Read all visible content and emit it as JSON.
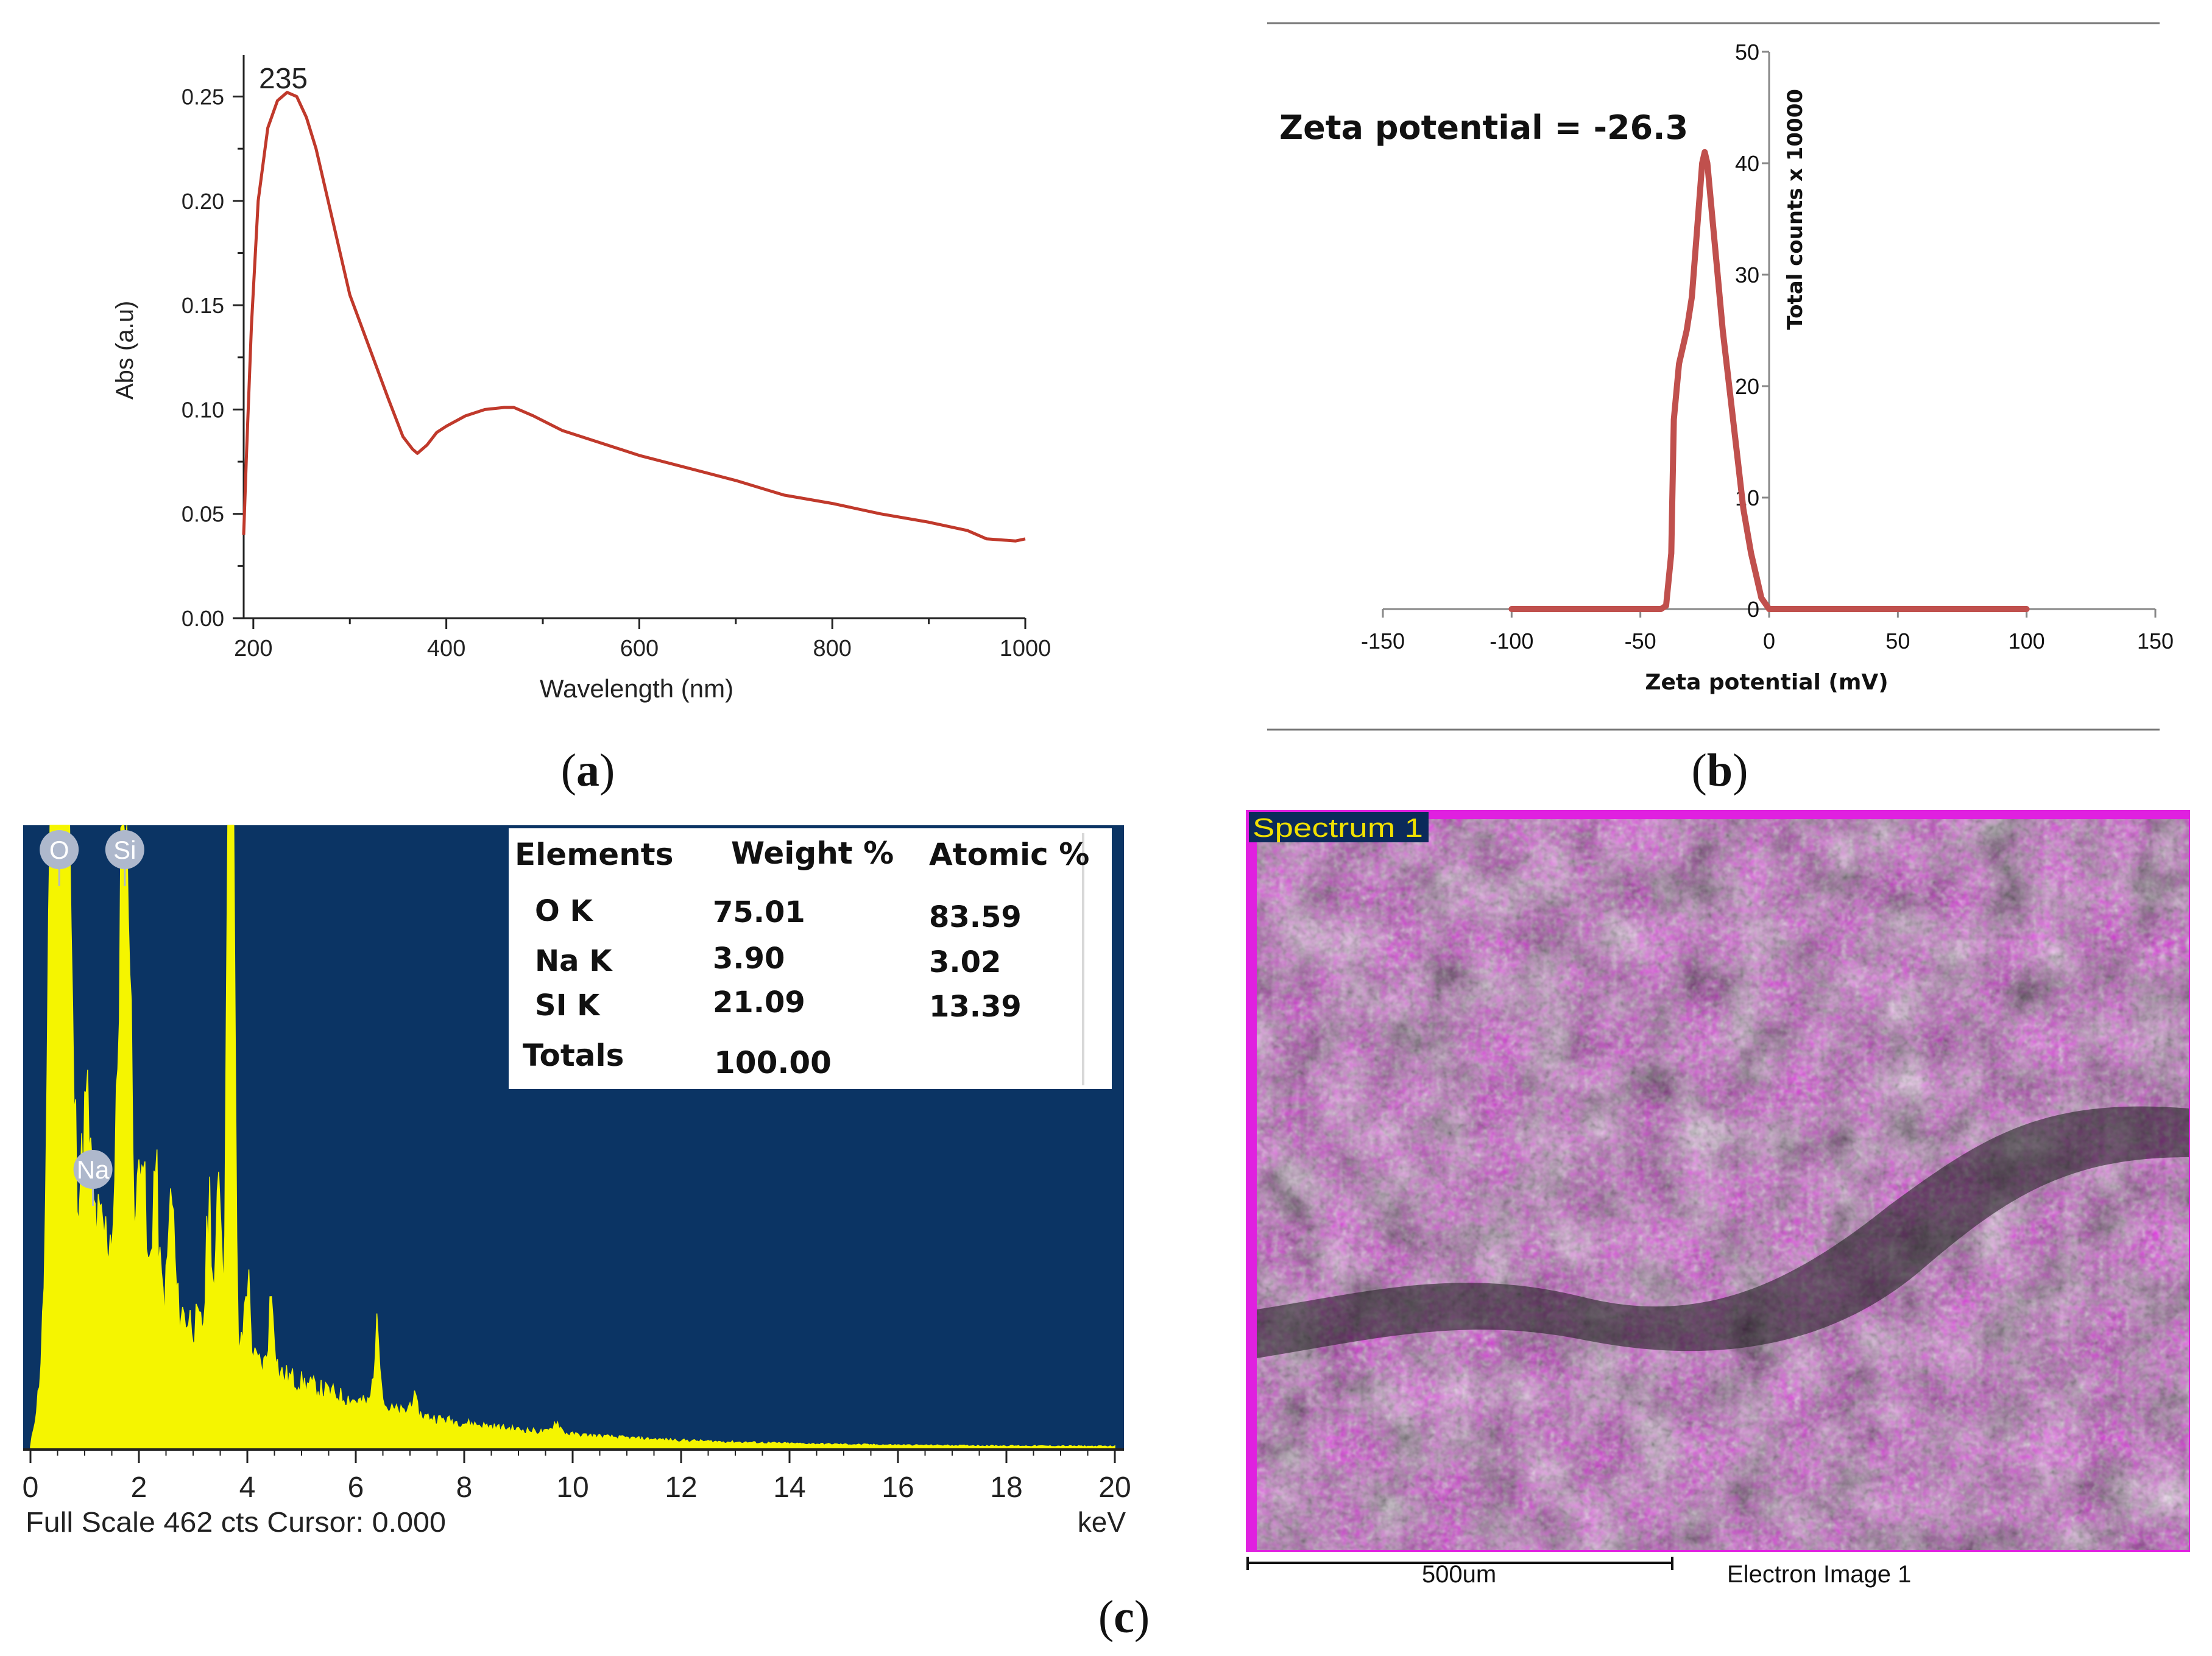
{
  "panel_labels": {
    "a": [
      "(",
      "a",
      ")"
    ],
    "b": [
      "(",
      "b",
      ")"
    ],
    "c": [
      "(",
      "c",
      ")"
    ]
  },
  "chart_data": [
    {
      "id": "a",
      "type": "line",
      "title": "",
      "xlabel": "Wavelength (nm)",
      "ylabel": "Abs (a.u)",
      "xlim": [
        190,
        1000
      ],
      "ylim": [
        0,
        0.27
      ],
      "x_ticks": [
        200,
        400,
        600,
        800,
        1000
      ],
      "x_tick_labels": [
        "200",
        "400",
        "600",
        "800",
        "1000"
      ],
      "y_ticks": [
        0,
        0.05,
        0.1,
        0.15,
        0.2,
        0.25
      ],
      "y_tick_labels": [
        "0.00",
        "0.05",
        "0.10",
        "0.15",
        "0.20",
        "0.25"
      ],
      "line_color": "#c0392b",
      "annotation": {
        "text": "235",
        "x": 235,
        "y": 0.262
      },
      "series": [
        {
          "x": [
            190,
            193,
            198,
            205,
            215,
            225,
            235,
            245,
            255,
            265,
            280,
            300,
            320,
            340,
            355,
            365,
            370,
            380,
            390,
            400,
            420,
            440,
            460,
            470,
            490,
            520,
            560,
            600,
            650,
            700,
            750,
            800,
            850,
            900,
            940,
            960,
            990,
            1000
          ],
          "y": [
            0.04,
            0.08,
            0.14,
            0.2,
            0.235,
            0.248,
            0.252,
            0.25,
            0.24,
            0.225,
            0.195,
            0.155,
            0.13,
            0.105,
            0.087,
            0.081,
            0.079,
            0.083,
            0.089,
            0.092,
            0.097,
            0.1,
            0.101,
            0.101,
            0.097,
            0.09,
            0.084,
            0.078,
            0.072,
            0.066,
            0.059,
            0.055,
            0.05,
            0.046,
            0.042,
            0.038,
            0.037,
            0.038
          ]
        }
      ]
    },
    {
      "id": "b",
      "type": "line",
      "title": "",
      "annotation": "Zeta potential = -26.3",
      "xlabel": "Zeta potential (mV)",
      "ylabel": "Total counts",
      "ylabel_multiplier": "x 10000",
      "xlim": [
        -150,
        150
      ],
      "ylim": [
        0,
        50
      ],
      "x_ticks": [
        -150,
        -100,
        -50,
        0,
        50,
        100,
        150
      ],
      "x_tick_labels": [
        "-150",
        "-100",
        "-50",
        "0",
        "50",
        "100",
        "150"
      ],
      "y_ticks": [
        0,
        10,
        20,
        30,
        40,
        50
      ],
      "y_tick_labels": [
        "0",
        "10",
        "20",
        "30",
        "40",
        "50"
      ],
      "line_color": "#c0504d",
      "series": [
        {
          "x": [
            -100,
            -50,
            -42,
            -40,
            -38,
            -37,
            -35,
            -32,
            -30,
            -28,
            -26,
            -25,
            -24,
            -22,
            -20,
            -18,
            -15,
            -12,
            -10,
            -7,
            -5,
            -3,
            0,
            20,
            40,
            100
          ],
          "y": [
            0,
            0,
            0,
            0.3,
            5,
            17,
            22,
            25,
            28,
            34,
            40,
            41,
            40,
            35,
            30,
            25,
            19,
            13,
            9,
            5,
            3,
            1,
            0,
            0,
            0,
            0
          ]
        }
      ]
    },
    {
      "id": "c",
      "type": "bar",
      "title": "",
      "xlabel": "keV",
      "footer": "Full Scale 462 cts Cursor: 0.000",
      "xlim": [
        0,
        20
      ],
      "ylim": [
        0,
        462
      ],
      "x_ticks": [
        0,
        2,
        4,
        6,
        8,
        10,
        12,
        14,
        16,
        18,
        20
      ],
      "x_tick_labels": [
        "0",
        "2",
        "4",
        "6",
        "8",
        "10",
        "12",
        "14",
        "16",
        "18",
        "20"
      ],
      "background_color": "#0b3464",
      "bar_color": "#f5f500",
      "peak_labels": [
        {
          "label": "O",
          "energy": 0.53
        },
        {
          "label": "Si",
          "energy": 1.74
        },
        {
          "label": "Na",
          "energy": 1.04
        }
      ],
      "peaks": [
        {
          "energy": 0.53,
          "counts": 1000,
          "width": 0.12
        },
        {
          "energy": 1.04,
          "counts": 75,
          "width": 0.06
        },
        {
          "energy": 1.74,
          "counts": 400,
          "width": 0.09
        },
        {
          "energy": 2.05,
          "counts": 120,
          "width": 0.05
        },
        {
          "energy": 2.3,
          "counts": 90,
          "width": 0.05
        },
        {
          "energy": 2.6,
          "counts": 80,
          "width": 0.05
        },
        {
          "energy": 3.3,
          "counts": 100,
          "width": 0.05
        },
        {
          "energy": 3.48,
          "counts": 140,
          "width": 0.04
        },
        {
          "energy": 3.69,
          "counts": 1000,
          "width": 0.05
        },
        {
          "energy": 4.0,
          "counts": 60,
          "width": 0.05
        },
        {
          "energy": 4.45,
          "counts": 55,
          "width": 0.05
        },
        {
          "energy": 6.4,
          "counts": 55,
          "width": 0.06
        },
        {
          "energy": 7.06,
          "counts": 12,
          "width": 0.06
        },
        {
          "energy": 9.7,
          "counts": 8,
          "width": 0.07
        }
      ],
      "background_model": {
        "a": 190,
        "decay": 0.33,
        "floor": 2
      },
      "table": {
        "headers": [
          "Elements",
          "Weight %",
          "Atomic %"
        ],
        "rows": [
          [
            "O K",
            "75.01",
            "83.59"
          ],
          [
            "Na K",
            "3.90",
            "3.02"
          ],
          [
            "SI K",
            "21.09",
            "13.39"
          ],
          [
            "Totals",
            "100.00",
            ""
          ]
        ]
      }
    }
  ],
  "sem": {
    "title": "Spectrum 1",
    "scale_bar_label": "500um",
    "caption": "Electron Image 1",
    "frame_color": "#e020e0"
  }
}
